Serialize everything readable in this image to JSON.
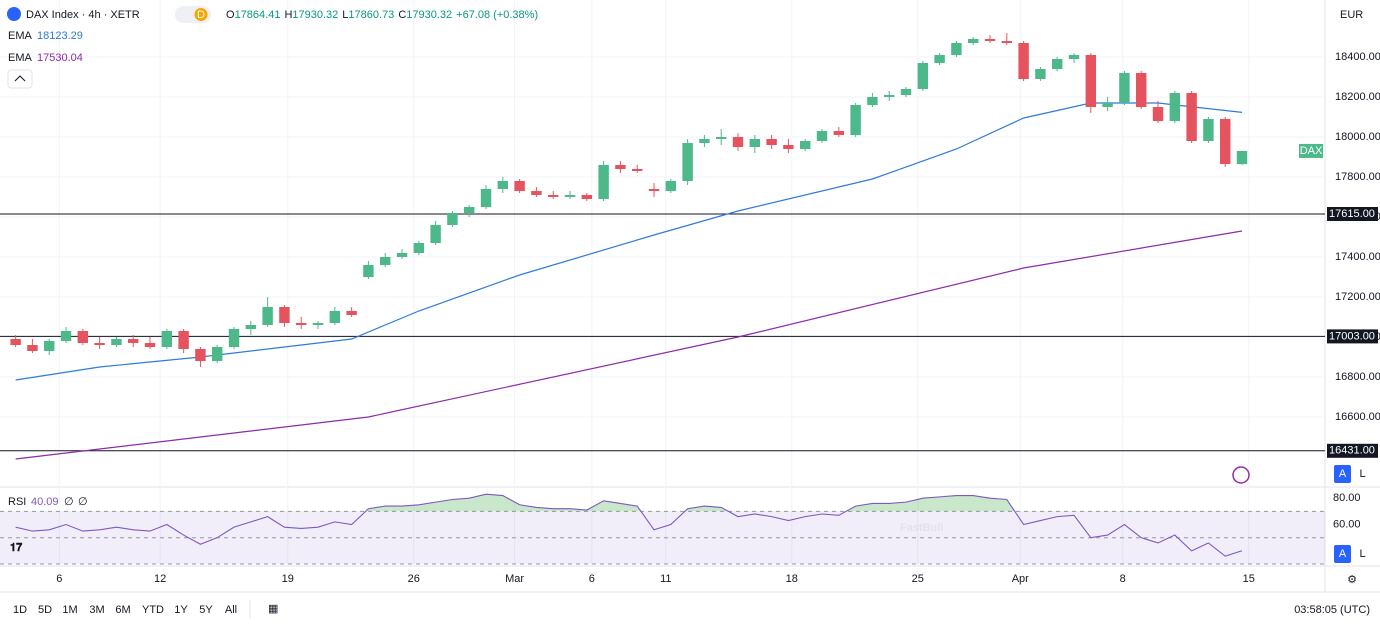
{
  "chart_data": {
    "type": "candlestick",
    "title": "DAX Index · 4h · XETR",
    "interval_badge": "D",
    "ohlc_prefixes": [
      "O",
      "H",
      "L",
      "C"
    ],
    "change_label": "+67.08 (+0.38%)",
    "currency": "EUR",
    "symbol_tag": "DAX",
    "watermark": "FastBull",
    "up_color": "#4db88a",
    "down_color": "#e5535f",
    "xlim": [
      -0.93,
      77.94
    ],
    "ylim": [
      16250,
      18685
    ],
    "yticks": [
      {
        "value": 16600,
        "label": "16600.00"
      },
      {
        "value": 16800,
        "label": "16800.00"
      },
      {
        "value": 17000,
        "label": "17000.00"
      },
      {
        "value": 17200,
        "label": "17200.00"
      },
      {
        "value": 17400,
        "label": "17400.00"
      },
      {
        "value": 17600,
        "label": "17600.00"
      },
      {
        "value": 17800,
        "label": "17800.00"
      },
      {
        "value": 18000,
        "label": "18000.00"
      },
      {
        "value": 18200,
        "label": "18200.00"
      },
      {
        "value": 18400,
        "label": "18400.00"
      }
    ],
    "xticks": [
      {
        "value": 2.6,
        "label": "6"
      },
      {
        "value": 8.6,
        "label": "12"
      },
      {
        "value": 16.2,
        "label": "19"
      },
      {
        "value": 23.7,
        "label": "26"
      },
      {
        "value": 29.7,
        "label": "Mar"
      },
      {
        "value": 34.3,
        "label": "6"
      },
      {
        "value": 38.7,
        "label": "11"
      },
      {
        "value": 46.2,
        "label": "18"
      },
      {
        "value": 53.7,
        "label": "25"
      },
      {
        "value": 59.8,
        "label": "Apr"
      },
      {
        "value": 65.9,
        "label": "8"
      },
      {
        "value": 73.4,
        "label": "15"
      }
    ],
    "grid": true,
    "levels": [
      {
        "value": 17615,
        "label": "17615.00"
      },
      {
        "value": 17003,
        "label": "17003.00"
      },
      {
        "value": 16431,
        "label": "16431.00"
      }
    ],
    "ohlc": {
      "open": [
        16990,
        16960,
        16930,
        16980,
        17030,
        16970,
        16960,
        16990,
        16970,
        16950,
        17030,
        16940,
        16880,
        16950,
        17040,
        17060,
        17150,
        17070,
        17060,
        17070,
        17130,
        17300,
        17360,
        17400,
        17420,
        17470,
        17560,
        17620,
        17650,
        17740,
        17780,
        17730,
        17710,
        17700,
        17710,
        17690,
        17860,
        17840,
        17740,
        17730,
        17780,
        17970,
        17990,
        18000,
        17950,
        17990,
        17960,
        17940,
        17980,
        18030,
        18010,
        18160,
        18200,
        18210,
        18240,
        18370,
        18410,
        18470,
        18490,
        18480,
        18470,
        18290,
        18340,
        18390,
        18410,
        18150,
        18170,
        18320,
        18150,
        18080,
        18220,
        17980,
        18090,
        17864.41
      ],
      "high": [
        17010,
        16990,
        16990,
        17050,
        17040,
        17000,
        17000,
        17010,
        17000,
        17040,
        17040,
        16950,
        16960,
        17050,
        17080,
        17200,
        17160,
        17100,
        17080,
        17150,
        17150,
        17380,
        17420,
        17440,
        17480,
        17580,
        17630,
        17660,
        17760,
        17800,
        17790,
        17750,
        17730,
        17730,
        17720,
        17880,
        17880,
        17860,
        17770,
        17790,
        17990,
        18010,
        18040,
        18020,
        18010,
        18010,
        17990,
        17990,
        18040,
        18050,
        18170,
        18220,
        18230,
        18250,
        18380,
        18420,
        18480,
        18500,
        18510,
        18520,
        18480,
        18350,
        18400,
        18420,
        18420,
        18200,
        18330,
        18330,
        18180,
        18230,
        18230,
        18100,
        18100,
        17930.32
      ],
      "low": [
        16950,
        16920,
        16910,
        16970,
        16960,
        16940,
        16950,
        16950,
        16940,
        16940,
        16920,
        16850,
        16870,
        16940,
        17010,
        17050,
        17050,
        17040,
        17040,
        17060,
        17100,
        17290,
        17350,
        17390,
        17410,
        17460,
        17550,
        17600,
        17640,
        17720,
        17720,
        17700,
        17690,
        17690,
        17680,
        17680,
        17820,
        17820,
        17700,
        17720,
        17760,
        17950,
        17960,
        17930,
        17920,
        17940,
        17920,
        17930,
        17970,
        18000,
        18000,
        18150,
        18180,
        18200,
        18230,
        18360,
        18400,
        18460,
        18470,
        18460,
        18280,
        18280,
        18330,
        18370,
        18120,
        18130,
        18160,
        18140,
        18070,
        18070,
        17970,
        17970,
        17850,
        17860.73
      ],
      "close": [
        16960,
        16930,
        16980,
        17030,
        16970,
        16960,
        16990,
        16970,
        16950,
        17030,
        16940,
        16880,
        16950,
        17040,
        17060,
        17150,
        17070,
        17060,
        17070,
        17130,
        17110,
        17360,
        17400,
        17420,
        17470,
        17560,
        17620,
        17650,
        17740,
        17780,
        17730,
        17710,
        17700,
        17710,
        17690,
        17860,
        17840,
        17830,
        17730,
        17780,
        17970,
        17990,
        18000,
        17950,
        17990,
        17960,
        17940,
        17980,
        18030,
        18010,
        18160,
        18200,
        18210,
        18240,
        18370,
        18410,
        18470,
        18490,
        18480,
        18470,
        18290,
        18340,
        18390,
        18410,
        18150,
        18170,
        18320,
        18150,
        18080,
        18220,
        17980,
        18090,
        17865,
        17930.32
      ]
    },
    "series": [
      {
        "name": "EMA",
        "color": "#2f7bd9",
        "x": [
          0,
          5,
          11,
          20,
          24,
          30,
          38,
          43,
          51,
          56,
          60,
          64,
          68,
          73
        ],
        "values": [
          16785,
          16850,
          16900,
          16990,
          17130,
          17310,
          17510,
          17630,
          17790,
          17940,
          18095,
          18170,
          18170,
          18123.29
        ]
      },
      {
        "name": "EMA",
        "color": "#8e2aa8",
        "x": [
          0,
          21,
          43,
          60,
          73
        ],
        "values": [
          16390,
          16600,
          17000,
          17345,
          17530.04
        ]
      }
    ],
    "rsi": {
      "name": "RSI",
      "params": [
        "∅",
        "∅"
      ],
      "color": "#7e57c2",
      "ylim": [
        28.5,
        88.5
      ],
      "yticks": [
        {
          "value": 80,
          "label": "80.00"
        },
        {
          "value": 60,
          "label": "60.00"
        }
      ],
      "bands": [
        70,
        50,
        30
      ],
      "values": [
        58,
        55,
        56,
        60,
        55,
        56,
        58,
        56,
        55,
        60,
        52,
        45,
        50,
        58,
        62,
        66,
        58,
        57,
        58,
        62,
        60,
        72,
        74,
        74,
        75,
        77,
        79,
        80,
        83,
        82,
        75,
        73,
        72,
        72,
        71,
        78,
        76,
        74,
        56,
        60,
        72,
        74,
        73,
        66,
        68,
        66,
        63,
        66,
        68,
        67,
        74,
        76,
        76,
        77,
        80,
        81,
        82,
        82,
        80,
        79,
        60,
        63,
        66,
        67,
        50,
        52,
        60,
        50,
        46,
        52,
        40,
        46,
        36,
        40.09
      ]
    },
    "scale_buttons": [
      "A",
      "L"
    ],
    "ranges": [
      "1D",
      "5D",
      "1M",
      "3M",
      "6M",
      "YTD",
      "1Y",
      "5Y",
      "All"
    ],
    "clock": "03:58:05 (UTC)"
  }
}
